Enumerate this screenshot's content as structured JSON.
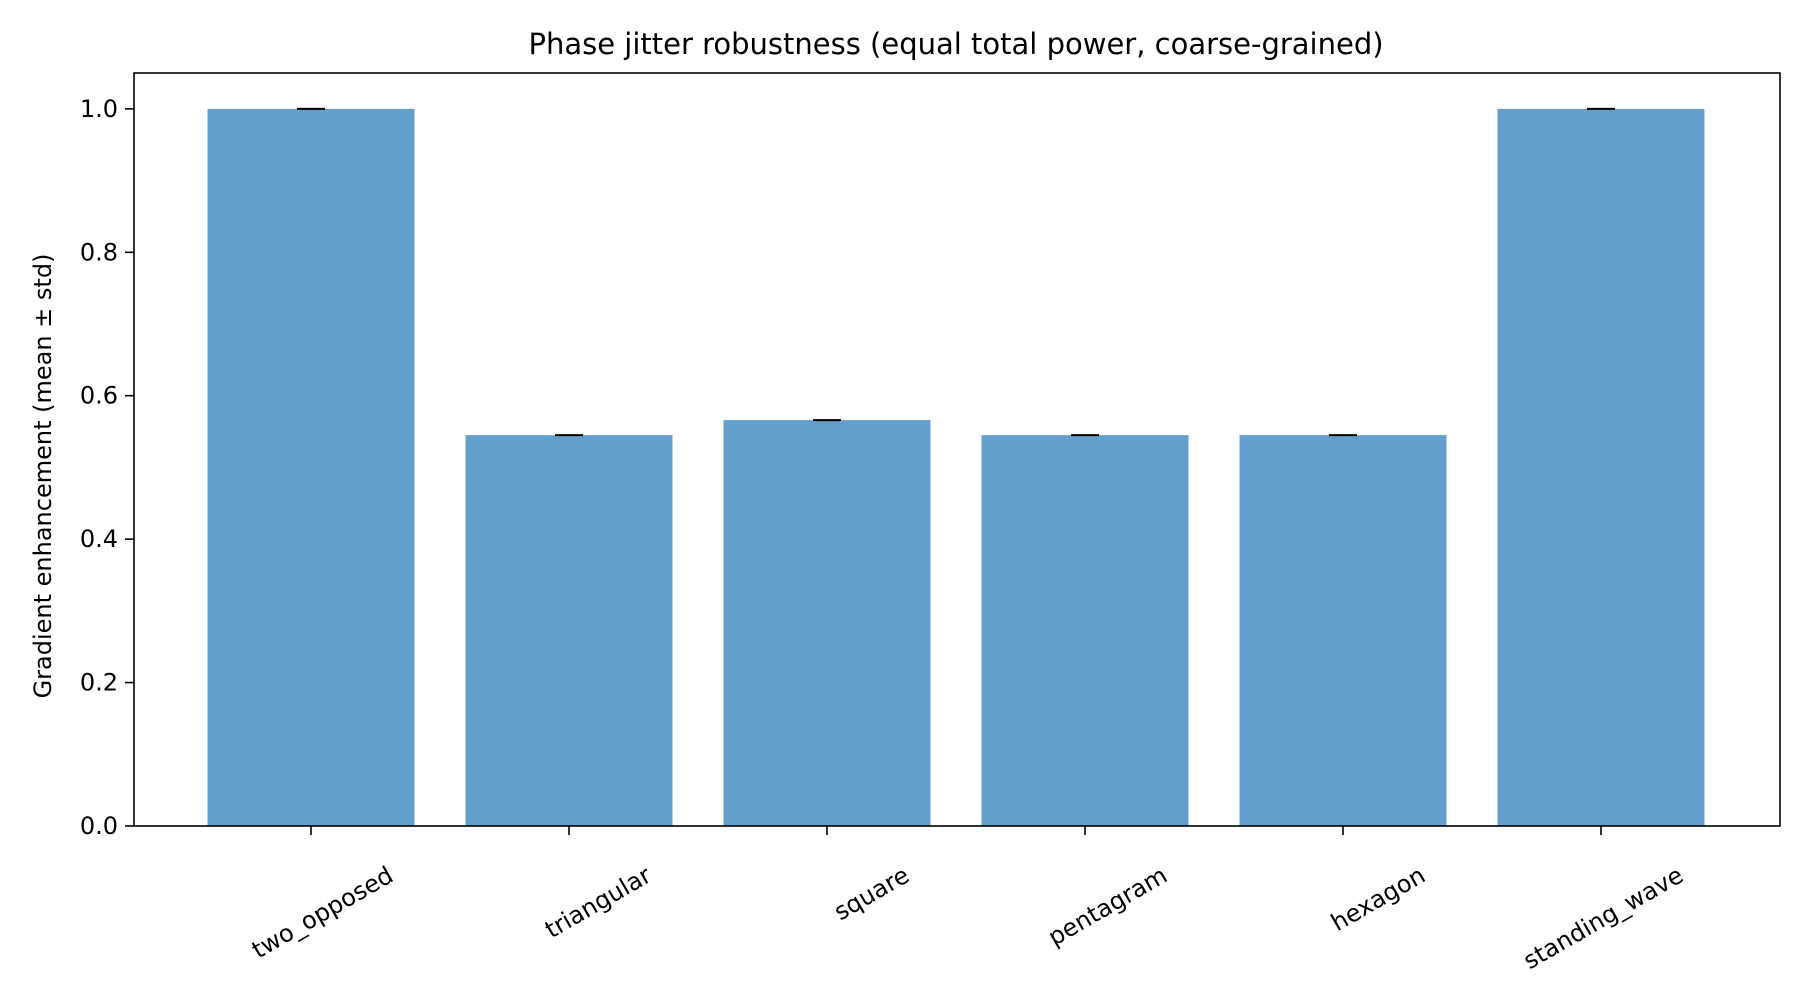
{
  "chart_data": {
    "type": "bar",
    "title": "Phase jitter robustness (equal total power, coarse-grained)",
    "xlabel": "",
    "ylabel": "Gradient enhancement (mean ± std)",
    "categories": [
      "two_opposed",
      "triangular",
      "square",
      "pentagram",
      "hexagon",
      "standing_wave"
    ],
    "values": [
      1.0,
      0.545,
      0.566,
      0.545,
      0.545,
      1.0
    ],
    "errors": [
      0.0,
      0.0,
      0.0,
      0.0,
      0.0,
      0.0
    ],
    "ylim": [
      0,
      1.05
    ],
    "yticks": [
      0.0,
      0.2,
      0.4,
      0.6,
      0.8,
      1.0
    ],
    "ytick_labels": [
      "0.0",
      "0.2",
      "0.4",
      "0.6",
      "0.8",
      "1.0"
    ],
    "grid": false,
    "legend": "none",
    "tick_label_rotation_deg": 30,
    "colors": {
      "bar": "#62a0cb",
      "error_bar": "#000000",
      "axes": "#000000",
      "background": "#ffffff"
    }
  }
}
